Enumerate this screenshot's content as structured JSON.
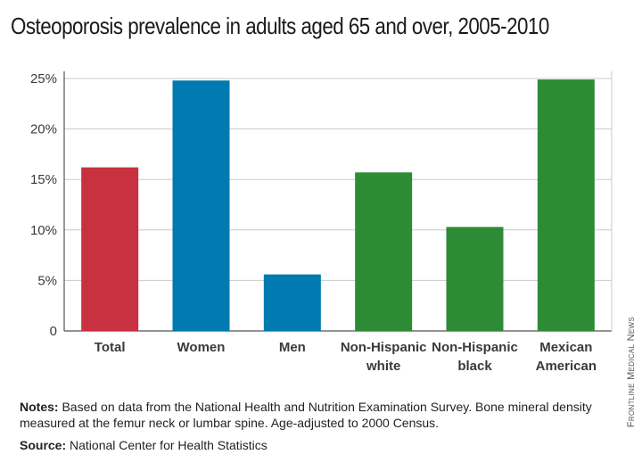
{
  "chart_data": {
    "type": "bar",
    "title": "Osteoporosis prevalence in adults aged 65 and over, 2005-2010",
    "categories": [
      [
        "Total"
      ],
      [
        "Women"
      ],
      [
        "Men"
      ],
      [
        "Non-Hispanic",
        "white"
      ],
      [
        "Non-Hispanic",
        "black"
      ],
      [
        "Mexican",
        "American"
      ]
    ],
    "values": [
      16.2,
      24.8,
      5.6,
      15.7,
      10.3,
      24.9
    ],
    "bar_colors": [
      "#c8313f",
      "#007ab0",
      "#007ab0",
      "#2e8b35",
      "#2e8b35",
      "#2e8b35"
    ],
    "ylim": [
      0,
      25
    ],
    "yticks": [
      0,
      5,
      10,
      15,
      20,
      25
    ],
    "ytick_labels": [
      "0",
      "5%",
      "10%",
      "15%",
      "20%",
      "25%"
    ],
    "grid": true,
    "xlabel": "",
    "ylabel": ""
  },
  "notes": {
    "label": "Notes:",
    "text": " Based on data from the National Health and Nutrition Examination Survey. Bone mineral density measured at the femur neck or lumbar spine. Age-adjusted to 2000 Census."
  },
  "source": {
    "label": "Source:",
    "text": " National Center for Health Statistics"
  },
  "credit": "Frontline Medical News",
  "colors": {
    "grid": "#c9c9c9",
    "axis": "#555555"
  }
}
